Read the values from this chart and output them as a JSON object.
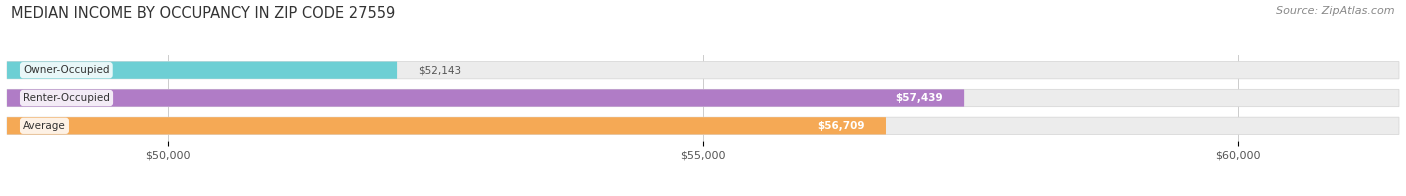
{
  "title": "MEDIAN INCOME BY OCCUPANCY IN ZIP CODE 27559",
  "source": "Source: ZipAtlas.com",
  "categories": [
    "Owner-Occupied",
    "Renter-Occupied",
    "Average"
  ],
  "values": [
    52143,
    57439,
    56709
  ],
  "labels": [
    "$52,143",
    "$57,439",
    "$56,709"
  ],
  "bar_colors": [
    "#6dcfd4",
    "#b07cc6",
    "#f5a955"
  ],
  "bar_edge_colors": [
    "#5bbec3",
    "#9e6ab5",
    "#e09844"
  ],
  "bar_bg_color": "#ececec",
  "bar_bg_edge_color": "#d8d8d8",
  "xmin": 48500,
  "xmax": 61500,
  "xticks": [
    50000,
    55000,
    60000
  ],
  "xtick_labels": [
    "$50,000",
    "$55,000",
    "$60,000"
  ],
  "title_fontsize": 10.5,
  "source_fontsize": 8,
  "label_fontsize": 7.5,
  "tick_fontsize": 8,
  "bar_height": 0.62,
  "bar_gap": 1.0,
  "fig_bg_color": "#ffffff",
  "grid_color": "#cccccc",
  "label_text_color": "#ffffff",
  "value_text_color": "#555555"
}
